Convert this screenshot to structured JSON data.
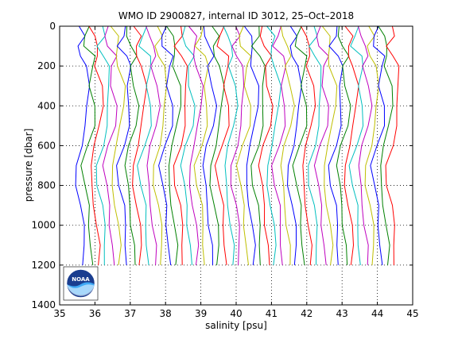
{
  "chart_data": {
    "type": "line",
    "title": "WMO ID 2900827, internal ID 3012, 25–Oct–2018",
    "xlabel": "salinity [psu]",
    "ylabel": "pressure [dbar]",
    "xlim": [
      35,
      45
    ],
    "ylim": [
      0,
      1400
    ],
    "y_reversed": true,
    "grid": true,
    "grid_style": "dotted",
    "x_ticks": [
      35,
      36,
      37,
      38,
      39,
      40,
      41,
      42,
      43,
      44,
      45
    ],
    "x_tick_labels": [
      "35",
      "36",
      "37",
      "38",
      "39",
      "40",
      "41",
      "42",
      "43",
      "44",
      "45"
    ],
    "y_ticks": [
      0,
      200,
      400,
      600,
      800,
      1000,
      1200,
      1400
    ],
    "y_tick_labels": [
      "0",
      "200",
      "400",
      "600",
      "800",
      "1000",
      "1200",
      "1400"
    ],
    "profile_colors": [
      "#0000ff",
      "#008000",
      "#ff0000",
      "#00bfbf",
      "#bf00bf",
      "#bfbf00"
    ],
    "profile_offset_psu": 0.2,
    "pressure_levels": [
      0,
      50,
      100,
      150,
      200,
      300,
      400,
      500,
      600,
      700,
      800,
      900,
      1000,
      1100,
      1200
    ],
    "profile_count": 45,
    "first_profile_base_salinity": [
      35.55,
      35.6,
      35.55,
      35.7,
      35.7,
      35.75,
      35.8,
      35.75,
      35.6,
      35.45,
      35.5,
      35.6,
      35.65,
      35.7,
      35.7
    ],
    "logo": "noaa-logo"
  }
}
